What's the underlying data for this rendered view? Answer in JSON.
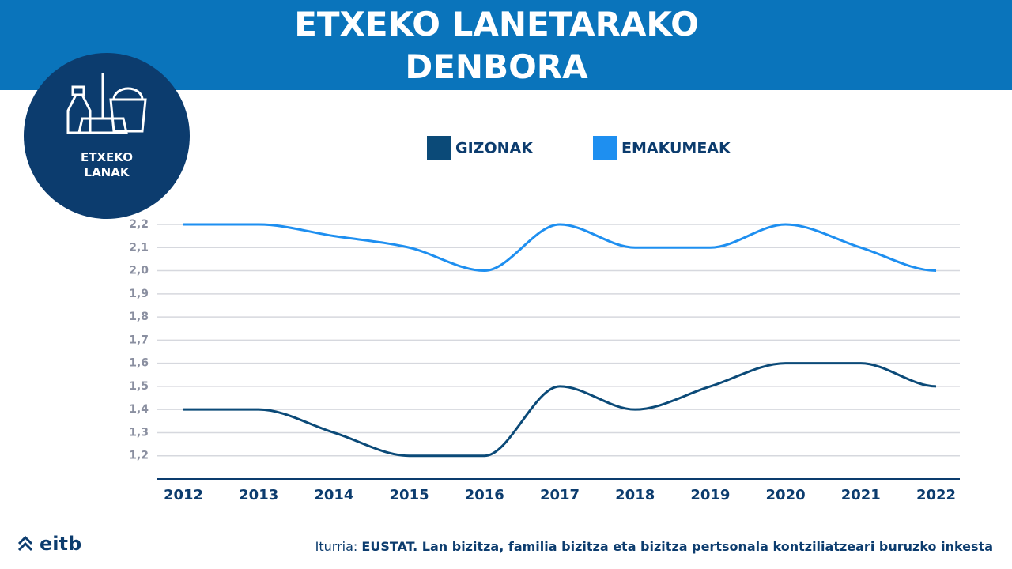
{
  "chart_data": {
    "type": "line",
    "title": "ETXEKO LANETARAKO DENBORA",
    "badge_label": "ETXEKO LANAK",
    "source_prefix": "Iturria:",
    "source": "EUSTAT. Lan bizitza, familia bizitza eta bizitza pertsonala kontziliatzeari buruzko inkesta",
    "logo_text": "eitb",
    "categories": [
      "2012",
      "2013",
      "2014",
      "2015",
      "2016",
      "2017",
      "2018",
      "2019",
      "2020",
      "2021",
      "2022"
    ],
    "series": [
      {
        "name": "GIZONAK",
        "color": "#0b4a78",
        "values": [
          1.4,
          1.4,
          1.3,
          1.2,
          1.2,
          1.5,
          1.4,
          1.5,
          1.6,
          1.6,
          1.5
        ]
      },
      {
        "name": "EMAKUMEAK",
        "color": "#1e8ff0",
        "values": [
          2.2,
          2.2,
          2.15,
          2.1,
          2.0,
          2.2,
          2.1,
          2.1,
          2.2,
          2.1,
          2.0
        ]
      }
    ],
    "ylim": [
      1.1,
      2.2
    ],
    "yticks": [
      {
        "value": 1.2,
        "label": "1,2"
      },
      {
        "value": 1.3,
        "label": "1,3"
      },
      {
        "value": 1.4,
        "label": "1,4"
      },
      {
        "value": 1.5,
        "label": "1,5"
      },
      {
        "value": 1.6,
        "label": "1,6"
      },
      {
        "value": 1.7,
        "label": "1,7"
      },
      {
        "value": 1.8,
        "label": "1,8"
      },
      {
        "value": 1.9,
        "label": "1,9"
      },
      {
        "value": 2.0,
        "label": "2,0"
      },
      {
        "value": 2.1,
        "label": "2,1"
      },
      {
        "value": 2.2,
        "label": "2,2"
      }
    ],
    "grid": true
  }
}
